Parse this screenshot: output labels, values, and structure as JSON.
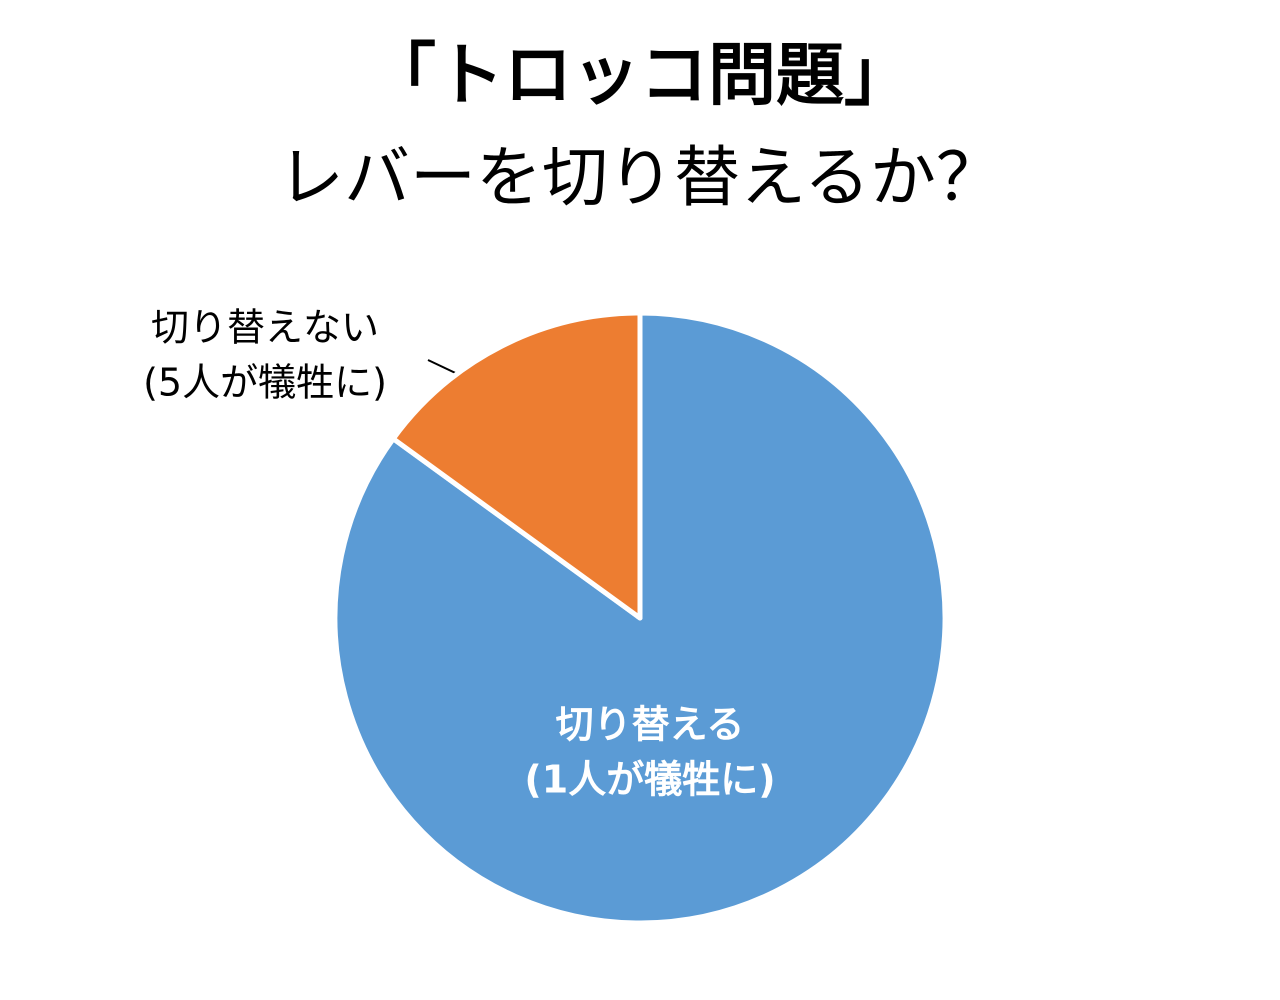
{
  "chart_data": {
    "type": "pie",
    "title": "「トロッコ問題」",
    "subtitle": "レバーを切り替えるか？",
    "categories": [
      [
        "切り替える",
        "(1人が犠牲に)"
      ],
      [
        "切り替えない",
        "(5人が犠牲に)"
      ]
    ],
    "values": [
      85,
      15
    ],
    "colors": [
      "#5b9bd5",
      "#ed7d31"
    ]
  }
}
